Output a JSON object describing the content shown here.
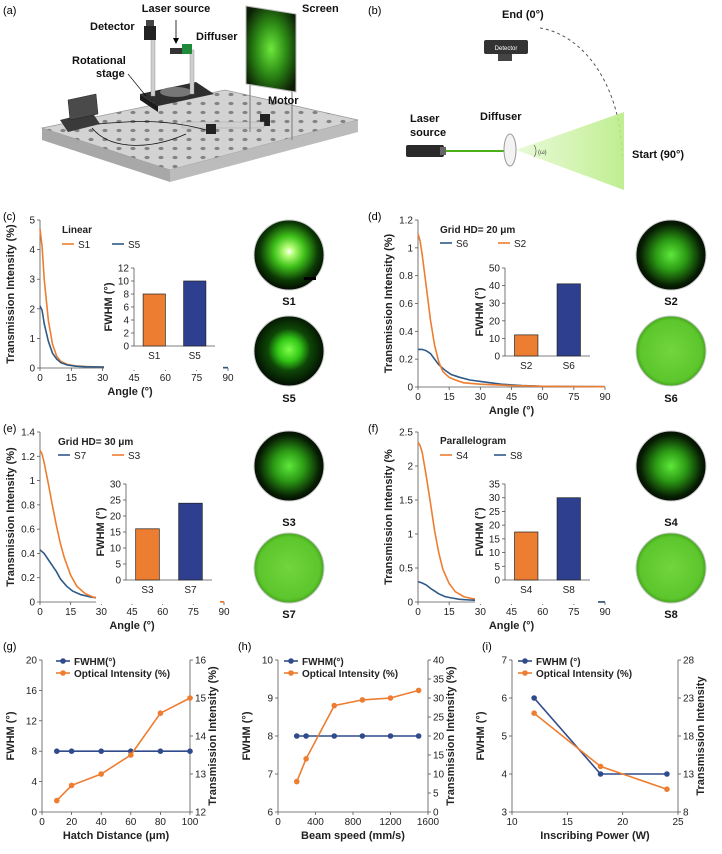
{
  "panel_a": {
    "letter": "(a)",
    "labels": {
      "laser_source": "Laser source",
      "detector": "Detector",
      "diffuser": "Diffuser",
      "screen": "Screen",
      "stage_1": "Rotational",
      "stage_2": "stage",
      "motor": "Motor"
    }
  },
  "panel_b": {
    "letter": "(b)",
    "labels": {
      "end": "End (0°)",
      "detector": "Detector",
      "laser_1": "Laser",
      "laser_2": "source",
      "diffuser": "Diffuser",
      "start": "Start (90°)",
      "omega": "(ω)"
    }
  },
  "spot_labels": [
    "S1",
    "S5",
    "S2",
    "S6",
    "S3",
    "S7",
    "S4",
    "S8"
  ],
  "chart_data": [
    {
      "id": "c",
      "letter": "(c)",
      "type": "line",
      "title": "Linear",
      "xlabel": "Angle (°)",
      "ylabel": "Transmission Intensity (%)",
      "xlim": [
        0,
        90
      ],
      "ylim": [
        0,
        5
      ],
      "xticks": [
        0,
        15,
        30,
        45,
        60,
        75,
        90
      ],
      "yticks": [
        0,
        1,
        2,
        3,
        4,
        5
      ],
      "series": [
        {
          "name": "S1",
          "color": "#ED7D31",
          "x": [
            0,
            1,
            2,
            4,
            6,
            8,
            10,
            13,
            17,
            22,
            30,
            45,
            60,
            75,
            90
          ],
          "y": [
            4.7,
            4.1,
            3.0,
            1.6,
            0.8,
            0.4,
            0.22,
            0.12,
            0.07,
            0.05,
            0.03,
            0.02,
            0.01,
            0.01,
            0.01
          ]
        },
        {
          "name": "S5",
          "color": "#2E5A87",
          "x": [
            0,
            1,
            2,
            4,
            6,
            8,
            10,
            13,
            17,
            22,
            30,
            45,
            60,
            75,
            90
          ],
          "y": [
            2.1,
            1.95,
            1.5,
            0.9,
            0.5,
            0.3,
            0.18,
            0.1,
            0.06,
            0.04,
            0.03,
            0.02,
            0.01,
            0.01,
            0.01
          ]
        }
      ],
      "inset": {
        "type": "bar",
        "ylabel": "FWHM (°)",
        "ylim": [
          0,
          12
        ],
        "yticks": [
          0,
          2,
          4,
          6,
          8,
          10,
          12
        ],
        "categories": [
          "S1",
          "S5"
        ],
        "values": [
          8,
          10
        ],
        "colors": [
          "#ED7D31",
          "#2E3F8F"
        ]
      }
    },
    {
      "id": "d",
      "letter": "(d)",
      "type": "line",
      "title": "Grid HD= 20 μm",
      "xlabel": "Angle (°)",
      "ylabel": "Transmission Intensity (%)",
      "xlim": [
        0,
        90
      ],
      "ylim": [
        0,
        1.2
      ],
      "xticks": [
        0,
        15,
        30,
        45,
        60,
        75,
        90
      ],
      "yticks": [
        0,
        0.2,
        0.4,
        0.6,
        0.8,
        1,
        1.2
      ],
      "series": [
        {
          "name": "S6",
          "color": "#2E5A87",
          "x": [
            0,
            2,
            4,
            6,
            8,
            10,
            13,
            16,
            20,
            25,
            30,
            40,
            50,
            60,
            75,
            90
          ],
          "y": [
            0.27,
            0.27,
            0.26,
            0.24,
            0.2,
            0.16,
            0.12,
            0.09,
            0.07,
            0.05,
            0.04,
            0.02,
            0.01,
            0.005,
            0.003,
            0.002
          ]
        },
        {
          "name": "S2",
          "color": "#ED7D31",
          "x": [
            0,
            1,
            2,
            4,
            6,
            8,
            10,
            12,
            15,
            18,
            22,
            30,
            45,
            60,
            75,
            90
          ],
          "y": [
            1.1,
            1.05,
            0.95,
            0.72,
            0.48,
            0.3,
            0.18,
            0.11,
            0.07,
            0.05,
            0.03,
            0.02,
            0.01,
            0.005,
            0.003,
            0.002
          ]
        }
      ],
      "inset": {
        "type": "bar",
        "ylabel": "FWHM (°)",
        "ylim": [
          0,
          50
        ],
        "yticks": [
          0,
          10,
          20,
          30,
          40,
          50
        ],
        "categories": [
          "S2",
          "S6"
        ],
        "values": [
          12,
          41
        ],
        "colors": [
          "#ED7D31",
          "#2E3F8F"
        ]
      }
    },
    {
      "id": "e",
      "letter": "(e)",
      "type": "line",
      "title": "Grid HD= 30 μm",
      "xlabel": "Angle (°)",
      "ylabel": "Transmission Intensity (%)",
      "xlim": [
        0,
        90
      ],
      "ylim": [
        0,
        1.4
      ],
      "xticks": [
        0,
        15,
        30,
        45,
        60,
        75,
        90
      ],
      "yticks": [
        0,
        0.2,
        0.4,
        0.6,
        0.8,
        1,
        1.2,
        1.4
      ],
      "series": [
        {
          "name": "S7",
          "color": "#2E5A87",
          "x": [
            0,
            2,
            4,
            6,
            8,
            10,
            13,
            16,
            20,
            25,
            30,
            40,
            50,
            60,
            75,
            90
          ],
          "y": [
            0.43,
            0.4,
            0.35,
            0.3,
            0.25,
            0.19,
            0.13,
            0.09,
            0.06,
            0.04,
            0.03,
            0.015,
            0.01,
            0.005,
            0.003,
            0.002
          ]
        },
        {
          "name": "S3",
          "color": "#ED7D31",
          "x": [
            0,
            1,
            2,
            4,
            6,
            8,
            10,
            12,
            15,
            18,
            22,
            26,
            30,
            40,
            50,
            60,
            75,
            90
          ],
          "y": [
            1.25,
            1.22,
            1.15,
            0.98,
            0.8,
            0.63,
            0.48,
            0.36,
            0.22,
            0.13,
            0.07,
            0.04,
            0.03,
            0.015,
            0.01,
            0.005,
            0.003,
            0.002
          ]
        }
      ],
      "inset": {
        "type": "bar",
        "ylabel": "FWHM (°)",
        "ylim": [
          0,
          30
        ],
        "yticks": [
          0,
          5,
          10,
          15,
          20,
          25,
          30
        ],
        "categories": [
          "S3",
          "S7"
        ],
        "values": [
          16,
          24
        ],
        "colors": [
          "#ED7D31",
          "#2E3F8F"
        ]
      }
    },
    {
      "id": "f",
      "letter": "(f)",
      "type": "line",
      "title": "Parallelogram",
      "xlabel": "Angle (°)",
      "ylabel": "Transmission Intensity (%",
      "xlim": [
        0,
        90
      ],
      "ylim": [
        0,
        2.5
      ],
      "xticks": [
        0,
        15,
        30,
        45,
        60,
        75,
        90
      ],
      "yticks": [
        0,
        0.5,
        1,
        1.5,
        2,
        2.5
      ],
      "series": [
        {
          "name": "S4",
          "color": "#ED7D31",
          "x": [
            0,
            1,
            2,
            4,
            6,
            8,
            10,
            12,
            15,
            18,
            22,
            26,
            30,
            40,
            50,
            60,
            75,
            90
          ],
          "y": [
            2.35,
            2.3,
            2.2,
            1.85,
            1.45,
            1.05,
            0.72,
            0.48,
            0.27,
            0.15,
            0.08,
            0.05,
            0.03,
            0.015,
            0.01,
            0.005,
            0.003,
            0.002
          ]
        },
        {
          "name": "S8",
          "color": "#2E5A87",
          "x": [
            0,
            2,
            4,
            6,
            8,
            10,
            13,
            16,
            20,
            25,
            30,
            40,
            50,
            60,
            75,
            90
          ],
          "y": [
            0.3,
            0.28,
            0.25,
            0.2,
            0.16,
            0.12,
            0.08,
            0.06,
            0.04,
            0.03,
            0.02,
            0.01,
            0.005,
            0.003,
            0.002,
            0.001
          ]
        }
      ],
      "inset": {
        "type": "bar",
        "ylabel": "FWHM (°)",
        "ylim": [
          0,
          35
        ],
        "yticks": [
          0,
          5,
          10,
          15,
          20,
          25,
          30,
          35
        ],
        "categories": [
          "S4",
          "S8"
        ],
        "values": [
          17.5,
          30
        ],
        "colors": [
          "#ED7D31",
          "#2E3F8F"
        ]
      }
    },
    {
      "id": "g",
      "letter": "(g)",
      "type": "line",
      "xlabel": "Hatch Distance (μm)",
      "ylabel": "FWHM (°)",
      "y2label": "Transmission Intensity (%)",
      "xlim": [
        0,
        100
      ],
      "ylim": [
        0,
        20
      ],
      "y2lim": [
        12,
        16
      ],
      "xticks": [
        0,
        20,
        40,
        60,
        80,
        100
      ],
      "yticks": [
        0,
        4,
        8,
        12,
        16,
        20
      ],
      "y2ticks": [
        12,
        13,
        14,
        15,
        16
      ],
      "series": [
        {
          "name": "FWHM(°)",
          "axis": "left",
          "color": "#2F4B8C",
          "x": [
            10,
            20,
            40,
            60,
            80,
            100
          ],
          "y": [
            8,
            8,
            8,
            8,
            8,
            8
          ]
        },
        {
          "name": "Optical Intensity (%)",
          "axis": "right",
          "color": "#ED7D31",
          "x": [
            10,
            20,
            40,
            60,
            80,
            100
          ],
          "y": [
            12.3,
            12.7,
            13.0,
            13.5,
            14.6,
            15.0
          ]
        }
      ]
    },
    {
      "id": "h",
      "letter": "(h)",
      "type": "line",
      "xlabel": "Beam speed (mm/s)",
      "ylabel": "FWHM (°)",
      "y2label": "Transmission Intensity (%)",
      "xlim": [
        0,
        1600
      ],
      "ylim": [
        6,
        10
      ],
      "y2lim": [
        0,
        40
      ],
      "xticks": [
        0,
        400,
        800,
        1200,
        1600
      ],
      "yticks": [
        6,
        7,
        8,
        9,
        10
      ],
      "y2ticks": [
        0,
        5,
        10,
        15,
        20,
        25,
        30,
        35,
        40
      ],
      "series": [
        {
          "name": "FWHM(°)",
          "axis": "left",
          "color": "#2F4B8C",
          "x": [
            200,
            300,
            600,
            900,
            1200,
            1500
          ],
          "y": [
            8,
            8,
            8,
            8,
            8,
            8
          ]
        },
        {
          "name": "Optical Intensity (%)",
          "axis": "right",
          "color": "#ED7D31",
          "x": [
            200,
            300,
            600,
            900,
            1200,
            1500
          ],
          "y": [
            8,
            14,
            28,
            29.5,
            30,
            32
          ]
        }
      ]
    },
    {
      "id": "i",
      "letter": "(i)",
      "type": "line",
      "xlabel": "Inscribing Power (W)",
      "ylabel": "FWHM (°)",
      "y2label": "Transmission Intensity",
      "xlim": [
        10,
        25
      ],
      "ylim": [
        3,
        7
      ],
      "y2lim": [
        8,
        28
      ],
      "xticks": [
        10,
        15,
        20,
        25
      ],
      "yticks": [
        3,
        4,
        5,
        6,
        7
      ],
      "y2ticks": [
        8,
        13,
        18,
        23,
        28
      ],
      "series": [
        {
          "name": "FWHM (°)",
          "axis": "left",
          "color": "#2F4B8C",
          "x": [
            12,
            18,
            24
          ],
          "y": [
            6,
            4,
            4
          ]
        },
        {
          "name": "Optical Intensity (%)",
          "axis": "right",
          "color": "#ED7D31",
          "x": [
            12,
            18,
            24
          ],
          "y": [
            21,
            14,
            11
          ]
        }
      ]
    }
  ]
}
